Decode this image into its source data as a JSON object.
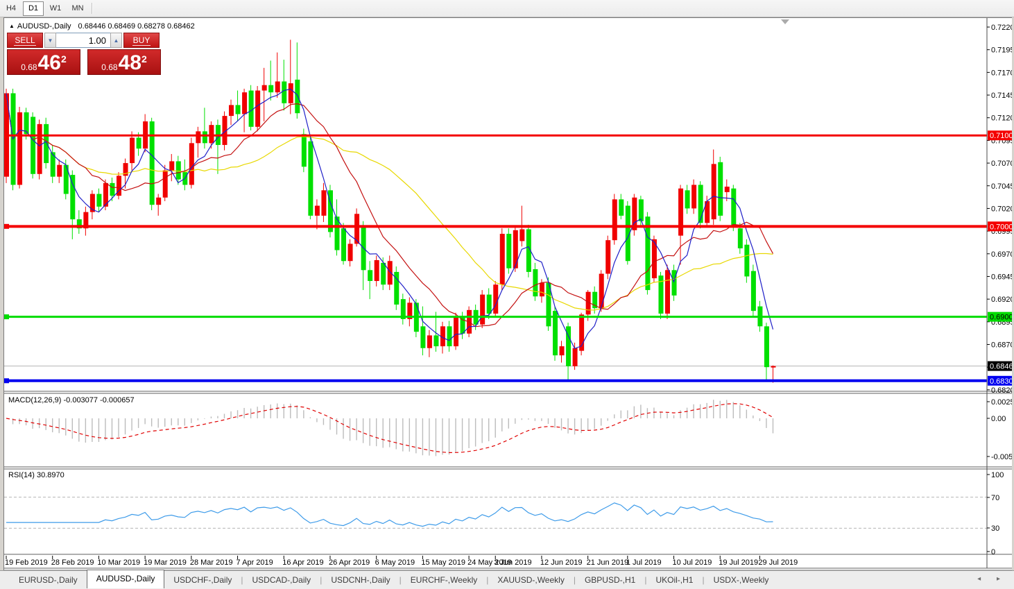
{
  "toolbar": {
    "timeframes": [
      "H4",
      "D1",
      "W1",
      "MN"
    ],
    "active": "D1"
  },
  "chart": {
    "symbol": "AUDUSD-,Daily",
    "ohlc_line": "0.68446 0.68469 0.68278 0.68462",
    "collapse_arrow": "▲",
    "trade_panel": {
      "sell_label": "SELL",
      "buy_label": "BUY",
      "volume": "1.00",
      "spin_down": "▼",
      "spin_up": "▲",
      "sell_price": {
        "prefix": "0.68",
        "big": "46",
        "sup": "2"
      },
      "buy_price": {
        "prefix": "0.68",
        "big": "48",
        "sup": "2"
      }
    }
  },
  "macd_panel": {
    "name": "MACD(12,26,9)",
    "values": "-0.003077 -0.000657",
    "axis": [
      "0.002522",
      "0.00",
      "-0.005234"
    ]
  },
  "rsi_panel": {
    "name": "RSI(14)",
    "value": "30.8970",
    "axis": [
      "100",
      "70",
      "30",
      "0"
    ]
  },
  "tabs": [
    "EURUSD-,Daily",
    "AUDUSD-,Daily",
    "USDCHF-,Daily",
    "USDCAD-,Daily",
    "USDCNH-,Daily",
    "EURCHF-,Weekly",
    "XAUUSD-,Weekly",
    "GBPUSD-,H1",
    "UKOil-,H1",
    "USDX-,Weekly"
  ],
  "active_tab": "AUDUSD-,Daily",
  "tab_scroll_arrows": "◂ ▸",
  "chart_data": {
    "type": "candlestick",
    "title": "AUDUSD- Daily",
    "current_bar": {
      "open": 0.68446,
      "high": 0.68469,
      "low": 0.68278,
      "close": 0.68462
    },
    "bid_line": 0.68462,
    "price_axis_ticks": [
      "0.72200",
      "0.71950",
      "0.71700",
      "0.71450",
      "0.71200",
      "0.70950",
      "0.70700",
      "0.70450",
      "0.70200",
      "0.69950",
      "0.69700",
      "0.69450",
      "0.69200",
      "0.68950",
      "0.68700",
      "0.68450",
      "0.68200"
    ],
    "hidden_ticks": [
      "0.68450"
    ],
    "price_tags": [
      {
        "label": "0.71005",
        "price": 0.71005,
        "bg": "#f40000",
        "fg": "#ffffff"
      },
      {
        "label": "0.70002",
        "price": 0.70002,
        "bg": "#f40000",
        "fg": "#ffffff"
      },
      {
        "label": "0.69005",
        "price": 0.69005,
        "bg": "#00dc00",
        "fg": "#000000"
      },
      {
        "label": "0.68462",
        "price": 0.68462,
        "bg": "#000000",
        "fg": "#ffffff"
      },
      {
        "label": "0.68300",
        "price": 0.683,
        "bg": "#0000f0",
        "fg": "#ffffff"
      }
    ],
    "levels": [
      {
        "price": 0.71005,
        "color": "#f40000",
        "width": 3
      },
      {
        "price": 0.70002,
        "color": "#f40000",
        "width": 4
      },
      {
        "price": 0.69005,
        "color": "#00dc00",
        "width": 3
      },
      {
        "price": 0.683,
        "color": "#0000f0",
        "width": 4
      }
    ],
    "moving_averages": [
      {
        "period": 30,
        "color": "#e8d800"
      },
      {
        "period": 13,
        "color": "#c41010"
      },
      {
        "period": 5,
        "color": "#2020c8"
      }
    ],
    "candle_colors": {
      "bull": "#f00000",
      "bear": "#00e000"
    },
    "indicators": {
      "macd": {
        "fast": 12,
        "slow": 26,
        "signal": 9,
        "value": -0.003077,
        "signal_value": -0.000657,
        "hist_color": "#bcbcbc",
        "signal_color": "#e00000"
      },
      "rsi": {
        "period": 14,
        "value": 30.897,
        "color": "#3d9be9",
        "levels": [
          30,
          70
        ]
      }
    },
    "time_labels": [
      {
        "i": 0,
        "t": "19 Feb 2019"
      },
      {
        "i": 7,
        "t": "28 Feb 2019"
      },
      {
        "i": 14,
        "t": "10 Mar 2019"
      },
      {
        "i": 21,
        "t": "19 Mar 2019"
      },
      {
        "i": 28,
        "t": "28 Mar 2019"
      },
      {
        "i": 35,
        "t": "7 Apr 2019"
      },
      {
        "i": 42,
        "t": "16 Apr 2019"
      },
      {
        "i": 49,
        "t": "26 Apr 2019"
      },
      {
        "i": 56,
        "t": "6 May 2019"
      },
      {
        "i": 63,
        "t": "15 May 2019"
      },
      {
        "i": 70,
        "t": "24 May 2019"
      },
      {
        "i": 74,
        "t": "3 Jun 2019"
      },
      {
        "i": 81,
        "t": "12 Jun 2019"
      },
      {
        "i": 88,
        "t": "21 Jun 2019"
      },
      {
        "i": 94,
        "t": "1 Jul 2019"
      },
      {
        "i": 101,
        "t": "10 Jul 2019"
      },
      {
        "i": 108,
        "t": "19 Jul 2019"
      },
      {
        "i": 114,
        "t": "29 Jul 2019"
      }
    ],
    "candles": [
      [
        0.7055,
        0.7152,
        0.7048,
        0.7147
      ],
      [
        0.7147,
        0.7152,
        0.704,
        0.7046
      ],
      [
        0.7046,
        0.7132,
        0.7042,
        0.7126
      ],
      [
        0.7126,
        0.7131,
        0.7096,
        0.7102
      ],
      [
        0.7121,
        0.7126,
        0.7053,
        0.7058
      ],
      [
        0.7058,
        0.7118,
        0.7052,
        0.7113
      ],
      [
        0.7113,
        0.712,
        0.7064,
        0.707
      ],
      [
        0.7082,
        0.709,
        0.7048,
        0.7055
      ],
      [
        0.7055,
        0.7074,
        0.7048,
        0.7068
      ],
      [
        0.7068,
        0.7074,
        0.703,
        0.7036
      ],
      [
        0.7057,
        0.7062,
        0.6986,
        0.7008
      ],
      [
        0.7008,
        0.7018,
        0.6992,
        0.6998
      ],
      [
        0.6998,
        0.7022,
        0.699,
        0.7016
      ],
      [
        0.7016,
        0.704,
        0.7008,
        0.7036
      ],
      [
        0.7036,
        0.7042,
        0.7016,
        0.7022
      ],
      [
        0.7022,
        0.7052,
        0.7018,
        0.7048
      ],
      [
        0.7048,
        0.7054,
        0.7028,
        0.7034
      ],
      [
        0.7034,
        0.706,
        0.703,
        0.7056
      ],
      [
        0.7056,
        0.7075,
        0.7042,
        0.707
      ],
      [
        0.707,
        0.7105,
        0.7062,
        0.7098
      ],
      [
        0.7098,
        0.7104,
        0.7078,
        0.7086
      ],
      [
        0.7086,
        0.7124,
        0.7082,
        0.7116
      ],
      [
        0.7116,
        0.712,
        0.7018,
        0.7024
      ],
      [
        0.7024,
        0.7036,
        0.7012,
        0.7032
      ],
      [
        0.7032,
        0.7068,
        0.7028,
        0.7062
      ],
      [
        0.7062,
        0.708,
        0.705,
        0.7072
      ],
      [
        0.7072,
        0.7078,
        0.7046,
        0.7052
      ],
      [
        0.706,
        0.7074,
        0.704,
        0.7046
      ],
      [
        0.7046,
        0.7098,
        0.7042,
        0.7092
      ],
      [
        0.7092,
        0.711,
        0.7076,
        0.7105
      ],
      [
        0.7105,
        0.7131,
        0.7086,
        0.7092
      ],
      [
        0.7092,
        0.7116,
        0.7086,
        0.7112
      ],
      [
        0.7112,
        0.7118,
        0.7058,
        0.709
      ],
      [
        0.709,
        0.7127,
        0.7084,
        0.7122
      ],
      [
        0.7122,
        0.714,
        0.7112,
        0.7134
      ],
      [
        0.7134,
        0.715,
        0.7116,
        0.7124
      ],
      [
        0.7124,
        0.7152,
        0.7104,
        0.7148
      ],
      [
        0.715,
        0.7156,
        0.7106,
        0.711
      ],
      [
        0.711,
        0.7155,
        0.7105,
        0.715
      ],
      [
        0.715,
        0.7175,
        0.7116,
        0.7156
      ],
      [
        0.7156,
        0.7183,
        0.7139,
        0.7148
      ],
      [
        0.7148,
        0.7192,
        0.7142,
        0.716
      ],
      [
        0.716,
        0.7184,
        0.7128,
        0.7136
      ],
      [
        0.7136,
        0.7206,
        0.7124,
        0.7158
      ],
      [
        0.7162,
        0.7203,
        0.7119,
        0.7125
      ],
      [
        0.7102,
        0.7108,
        0.706,
        0.7066
      ],
      [
        0.7094,
        0.71,
        0.7008,
        0.7012
      ],
      [
        0.7012,
        0.703,
        0.6997,
        0.7023
      ],
      [
        0.7012,
        0.7048,
        0.7005,
        0.704
      ],
      [
        0.704,
        0.7046,
        0.6988,
        0.6994
      ],
      [
        0.7011,
        0.703,
        0.6968,
        0.6974
      ],
      [
        0.6998,
        0.7004,
        0.6958,
        0.6962
      ],
      [
        0.6962,
        0.6986,
        0.6956,
        0.6981
      ],
      [
        0.6981,
        0.702,
        0.6978,
        0.7014
      ],
      [
        0.7,
        0.7006,
        0.693,
        0.6952
      ],
      [
        0.6952,
        0.6962,
        0.692,
        0.694
      ],
      [
        0.694,
        0.6968,
        0.6934,
        0.6963
      ],
      [
        0.696,
        0.6966,
        0.693,
        0.6936
      ],
      [
        0.6936,
        0.6968,
        0.693,
        0.6962
      ],
      [
        0.695,
        0.6956,
        0.6908,
        0.6914
      ],
      [
        0.692,
        0.6926,
        0.6892,
        0.6898
      ],
      [
        0.6898,
        0.6922,
        0.689,
        0.6916
      ],
      [
        0.6916,
        0.692,
        0.6878,
        0.6884
      ],
      [
        0.689,
        0.6912,
        0.6858,
        0.6866
      ],
      [
        0.6866,
        0.6886,
        0.6856,
        0.688
      ],
      [
        0.688,
        0.6906,
        0.6862,
        0.6868
      ],
      [
        0.6868,
        0.6895,
        0.686,
        0.689
      ],
      [
        0.689,
        0.6896,
        0.6862,
        0.6868
      ],
      [
        0.6868,
        0.6905,
        0.6864,
        0.69
      ],
      [
        0.69,
        0.6906,
        0.6876,
        0.6882
      ],
      [
        0.6882,
        0.6912,
        0.6878,
        0.6908
      ],
      [
        0.6908,
        0.6914,
        0.6886,
        0.6892
      ],
      [
        0.6892,
        0.693,
        0.6888,
        0.6925
      ],
      [
        0.6925,
        0.6932,
        0.6898,
        0.6904
      ],
      [
        0.6904,
        0.694,
        0.69,
        0.6936
      ],
      [
        0.6936,
        0.6998,
        0.693,
        0.6992
      ],
      [
        0.6992,
        0.6998,
        0.6948,
        0.6954
      ],
      [
        0.6954,
        0.7,
        0.695,
        0.6996
      ],
      [
        0.6984,
        0.7023,
        0.6978,
        0.6997
      ],
      [
        0.6997,
        0.7002,
        0.6944,
        0.695
      ],
      [
        0.6953,
        0.696,
        0.6918,
        0.6923
      ],
      [
        0.6923,
        0.6942,
        0.6916,
        0.6938
      ],
      [
        0.6938,
        0.6944,
        0.6885,
        0.689
      ],
      [
        0.6907,
        0.6912,
        0.6852,
        0.6858
      ],
      [
        0.6858,
        0.6874,
        0.685,
        0.6868
      ],
      [
        0.689,
        0.6894,
        0.6831,
        0.6846
      ],
      [
        0.6846,
        0.6872,
        0.6842,
        0.6866
      ],
      [
        0.6863,
        0.6905,
        0.6858,
        0.6903
      ],
      [
        0.6903,
        0.693,
        0.6896,
        0.6928
      ],
      [
        0.6928,
        0.6934,
        0.6904,
        0.691
      ],
      [
        0.691,
        0.6952,
        0.6906,
        0.6948
      ],
      [
        0.6948,
        0.699,
        0.6942,
        0.6985
      ],
      [
        0.6985,
        0.7036,
        0.698,
        0.703
      ],
      [
        0.703,
        0.7036,
        0.7008,
        0.7012
      ],
      [
        0.7023,
        0.7028,
        0.6958,
        0.6962
      ],
      [
        0.6996,
        0.7036,
        0.699,
        0.7032
      ],
      [
        0.703,
        0.7034,
        0.7,
        0.7006
      ],
      [
        0.7011,
        0.7016,
        0.6925,
        0.693
      ],
      [
        0.6943,
        0.699,
        0.6938,
        0.6986
      ],
      [
        0.6946,
        0.695,
        0.6898,
        0.6904
      ],
      [
        0.6904,
        0.6958,
        0.6898,
        0.6952
      ],
      [
        0.6952,
        0.6958,
        0.6918,
        0.6924
      ],
      [
        0.699,
        0.7046,
        0.6958,
        0.7042
      ],
      [
        0.704,
        0.7046,
        0.7014,
        0.702
      ],
      [
        0.702,
        0.7052,
        0.7014,
        0.7046
      ],
      [
        0.7046,
        0.705,
        0.6998,
        0.7004
      ],
      [
        0.7004,
        0.7034,
        0.7,
        0.7028
      ],
      [
        0.7008,
        0.7085,
        0.7002,
        0.7069
      ],
      [
        0.7071,
        0.7077,
        0.7006,
        0.7012
      ],
      [
        0.7038,
        0.7052,
        0.7028,
        0.7044
      ],
      [
        0.7042,
        0.7046,
        0.6995,
        0.7
      ],
      [
        0.6998,
        0.7004,
        0.697,
        0.6976
      ],
      [
        0.698,
        0.6986,
        0.6938,
        0.6945
      ],
      [
        0.6951,
        0.6958,
        0.69,
        0.6907
      ],
      [
        0.6912,
        0.6918,
        0.6884,
        0.689
      ],
      [
        0.689,
        0.6894,
        0.6831,
        0.6845
      ],
      [
        0.68446,
        0.68469,
        0.68278,
        0.68462
      ]
    ]
  }
}
